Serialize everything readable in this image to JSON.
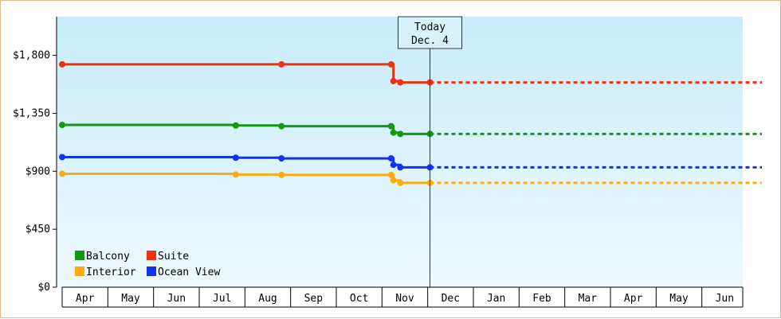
{
  "chart_data": {
    "type": "line",
    "title": "",
    "xlabel": "",
    "ylabel": "",
    "ylim": [
      0,
      2100
    ],
    "yticks": [
      "$0",
      "$450",
      "$900",
      "$1,350",
      "$1,800"
    ],
    "ytick_values": [
      0,
      450,
      900,
      1350,
      1800
    ],
    "x_months": [
      "Apr",
      "May",
      "Jun",
      "Jul",
      "Aug",
      "Sep",
      "Oct",
      "Nov",
      "Dec",
      "Jan",
      "Feb",
      "Mar",
      "Apr",
      "May",
      "Jun"
    ],
    "today": {
      "label": "Today",
      "date": "Dec. 4",
      "x": 8.05
    },
    "grid": false,
    "legend": "bottom-left",
    "series": [
      {
        "name": "Balcony",
        "color": "#119911",
        "points": [
          [
            0.0,
            1260
          ],
          [
            3.8,
            1255
          ],
          [
            4.8,
            1250
          ],
          [
            7.2,
            1250
          ],
          [
            7.25,
            1200
          ],
          [
            7.4,
            1190
          ],
          [
            8.05,
            1190
          ]
        ],
        "forecast": [
          [
            8.05,
            1190
          ],
          [
            15.4,
            1190
          ]
        ]
      },
      {
        "name": "Suite",
        "color": "#ee3311",
        "points": [
          [
            0.0,
            1730
          ],
          [
            4.8,
            1730
          ],
          [
            7.2,
            1730
          ],
          [
            7.25,
            1600
          ],
          [
            7.4,
            1590
          ],
          [
            8.05,
            1590
          ]
        ],
        "forecast": [
          [
            8.05,
            1590
          ],
          [
            15.4,
            1590
          ]
        ]
      },
      {
        "name": "Interior",
        "color": "#ffaa11",
        "points": [
          [
            0.0,
            880
          ],
          [
            3.8,
            875
          ],
          [
            4.8,
            872
          ],
          [
            7.2,
            872
          ],
          [
            7.25,
            830
          ],
          [
            7.4,
            810
          ],
          [
            8.05,
            810
          ]
        ],
        "forecast": [
          [
            8.05,
            810
          ],
          [
            15.4,
            810
          ]
        ]
      },
      {
        "name": "Ocean View",
        "color": "#1133ee",
        "points": [
          [
            0.0,
            1010
          ],
          [
            3.8,
            1005
          ],
          [
            4.8,
            1000
          ],
          [
            7.2,
            1000
          ],
          [
            7.25,
            950
          ],
          [
            7.4,
            930
          ],
          [
            8.05,
            930
          ]
        ],
        "forecast": [
          [
            8.05,
            930
          ],
          [
            15.4,
            930
          ]
        ]
      }
    ]
  }
}
